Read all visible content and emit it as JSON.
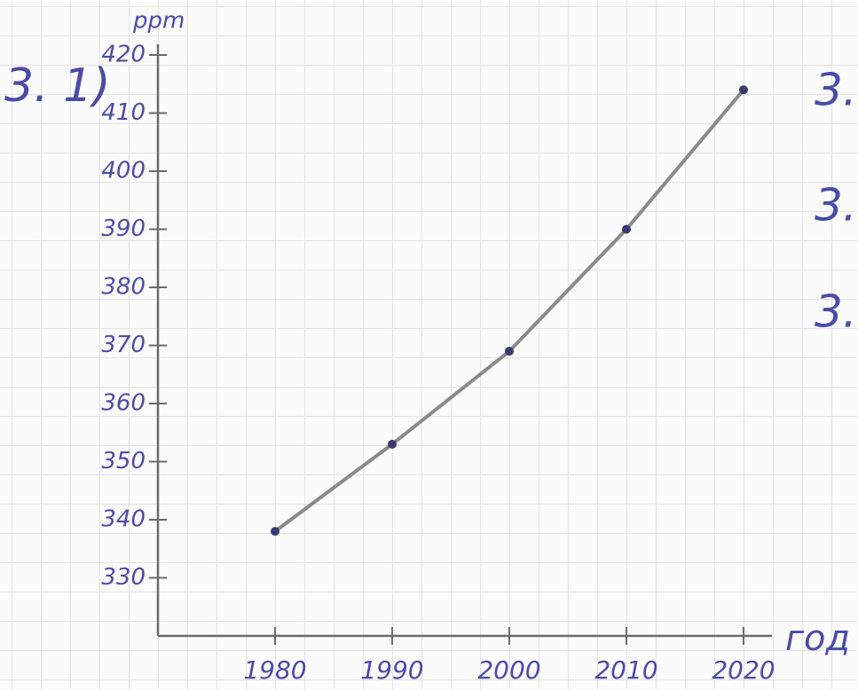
{
  "chart_data": {
    "type": "line",
    "y_label": "ppm",
    "x_label": "год",
    "annotations": [
      "3. 1)",
      "3.",
      "3.",
      "3."
    ],
    "x": [
      1980,
      1990,
      2000,
      2010,
      2020
    ],
    "series": [
      {
        "color": "#8a8a8a",
        "values": [
          338,
          353,
          369,
          390,
          414
        ]
      }
    ],
    "xlim": [
      1970,
      2020
    ],
    "ylim": [
      320,
      420
    ],
    "xticks": [
      1980,
      1990,
      2000,
      2010,
      2020
    ],
    "yticks": [
      330,
      340,
      350,
      360,
      370,
      380,
      390,
      400,
      410,
      420
    ]
  }
}
